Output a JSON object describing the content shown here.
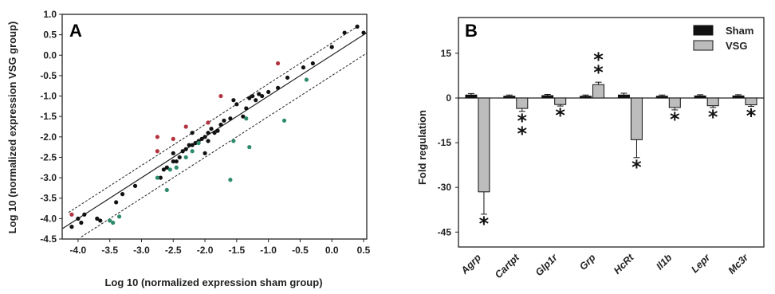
{
  "chart_data": [
    {
      "type": "scatter",
      "panel": "A",
      "xlabel": "Log 10 (normalized expression sham group)",
      "ylabel": "Log 10 (normalized expression VSG group)",
      "xlim": [
        -4.25,
        0.55
      ],
      "ylim": [
        -4.5,
        1.0
      ],
      "xticks": [
        "-4.0",
        "-3.5",
        "-3.0",
        "-2.5",
        "-2.0",
        "-1.5",
        "-1.0",
        "-0.5",
        "0.0",
        "0.5"
      ],
      "yticks": [
        "1.0",
        "0.5",
        "0.0",
        "-0.5",
        "-1.0",
        "-1.5",
        "-2.0",
        "-2.5",
        "-3.0",
        "-3.5",
        "-4.0",
        "-4.5"
      ],
      "lines": [
        {
          "style": "solid",
          "x": [
            -4.25,
            0.55
          ],
          "y": [
            -4.25,
            0.55
          ]
        },
        {
          "style": "dashed",
          "x": [
            -4.15,
            0.4
          ],
          "y": [
            -3.85,
            0.7
          ]
        },
        {
          "style": "dashed",
          "x": [
            -3.95,
            0.55
          ],
          "y": [
            -4.45,
            0.05
          ]
        }
      ],
      "colors": {
        "black": "#111111",
        "red": "#b3333f",
        "green": "#2e8b6a"
      },
      "series": [
        {
          "color": "black",
          "points": [
            [
              -4.1,
              -4.2
            ],
            [
              -4.0,
              -4.0
            ],
            [
              -3.9,
              -3.9
            ],
            [
              -3.95,
              -4.1
            ],
            [
              -3.7,
              -4.0
            ],
            [
              -3.65,
              -4.05
            ],
            [
              -3.4,
              -3.6
            ],
            [
              -3.3,
              -3.4
            ],
            [
              -3.1,
              -3.2
            ],
            [
              -2.7,
              -3.0
            ],
            [
              -2.65,
              -2.8
            ],
            [
              -2.6,
              -2.75
            ],
            [
              -2.5,
              -2.6
            ],
            [
              -2.45,
              -2.6
            ],
            [
              -2.4,
              -2.5
            ],
            [
              -2.35,
              -2.35
            ],
            [
              -2.3,
              -2.3
            ],
            [
              -2.25,
              -2.2
            ],
            [
              -2.2,
              -2.2
            ],
            [
              -2.15,
              -2.15
            ],
            [
              -2.1,
              -2.1
            ],
            [
              -2.05,
              -2.05
            ],
            [
              -2.0,
              -2.0
            ],
            [
              -1.95,
              -1.9
            ],
            [
              -1.9,
              -1.8
            ],
            [
              -1.85,
              -1.9
            ],
            [
              -1.8,
              -1.85
            ],
            [
              -1.75,
              -1.7
            ],
            [
              -1.7,
              -1.6
            ],
            [
              -1.6,
              -1.55
            ],
            [
              -1.55,
              -1.1
            ],
            [
              -1.5,
              -1.2
            ],
            [
              -1.4,
              -1.5
            ],
            [
              -1.35,
              -1.3
            ],
            [
              -1.3,
              -1.05
            ],
            [
              -1.25,
              -1.0
            ],
            [
              -1.2,
              -1.1
            ],
            [
              -1.15,
              -0.95
            ],
            [
              -1.1,
              -1.0
            ],
            [
              -1.0,
              -0.9
            ],
            [
              -0.85,
              -0.8
            ],
            [
              -0.7,
              -0.55
            ],
            [
              -0.45,
              -0.3
            ],
            [
              -0.3,
              -0.2
            ],
            [
              0.0,
              0.2
            ],
            [
              0.2,
              0.55
            ],
            [
              0.4,
              0.7
            ],
            [
              0.5,
              0.55
            ],
            [
              -2.0,
              -2.4
            ],
            [
              -1.95,
              -2.1
            ],
            [
              -2.5,
              -2.4
            ],
            [
              -2.2,
              -1.9
            ]
          ]
        },
        {
          "color": "red",
          "points": [
            [
              -4.1,
              -3.9
            ],
            [
              -2.75,
              -2.0
            ],
            [
              -2.75,
              -2.35
            ],
            [
              -2.5,
              -2.05
            ],
            [
              -2.3,
              -1.75
            ],
            [
              -1.75,
              -1.0
            ],
            [
              -0.85,
              -0.2
            ],
            [
              -1.95,
              -1.65
            ]
          ]
        },
        {
          "color": "green",
          "points": [
            [
              -3.45,
              -4.1
            ],
            [
              -3.5,
              -4.05
            ],
            [
              -3.35,
              -3.95
            ],
            [
              -2.75,
              -3.0
            ],
            [
              -2.6,
              -3.3
            ],
            [
              -2.55,
              -2.8
            ],
            [
              -2.45,
              -2.75
            ],
            [
              -2.3,
              -2.5
            ],
            [
              -2.2,
              -2.35
            ],
            [
              -2.1,
              -2.15
            ],
            [
              -1.6,
              -3.05
            ],
            [
              -1.55,
              -2.1
            ],
            [
              -1.3,
              -2.25
            ],
            [
              -1.35,
              -1.55
            ],
            [
              -0.75,
              -1.6
            ],
            [
              -0.4,
              -0.6
            ]
          ]
        }
      ]
    },
    {
      "type": "bar",
      "panel": "B",
      "ylabel": "Fold regulation",
      "ylim": [
        -50,
        27
      ],
      "yticks": [
        15,
        0,
        -15,
        -30,
        -45
      ],
      "categories": [
        "Agrp",
        "Cartpt",
        "Glp1r",
        "Grp",
        "HcRt",
        "Il1b",
        "Lepr",
        "Mc3r"
      ],
      "series": [
        {
          "name": "Sham",
          "color": "#111111",
          "values": [
            1.0,
            0.6,
            0.8,
            0.6,
            1.0,
            0.6,
            0.7,
            0.7
          ],
          "errors": [
            0.5,
            0.4,
            0.4,
            0.4,
            0.6,
            0.4,
            0.4,
            0.4
          ]
        },
        {
          "name": "VSG",
          "color": "#bdbdbd",
          "values": [
            -31.5,
            -3.5,
            -2.2,
            4.5,
            -14.0,
            -3.2,
            -2.6,
            -2.3
          ],
          "errors": [
            7.5,
            1.0,
            0.5,
            0.8,
            6.0,
            0.8,
            0.6,
            0.5
          ]
        }
      ],
      "significance": [
        "*",
        "* *",
        "*",
        "* *",
        "*",
        "*",
        "*",
        "*"
      ]
    }
  ]
}
